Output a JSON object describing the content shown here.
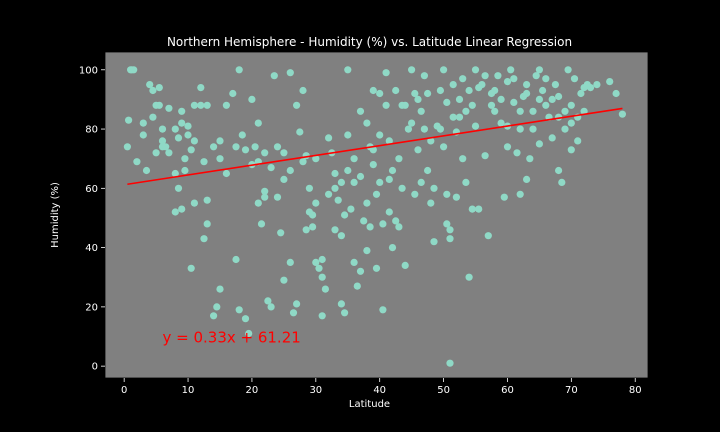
{
  "chart_data": {
    "type": "scatter",
    "title": "Northern Hemisphere - Humidity (%) vs. Latitude Linear Regression",
    "xlabel": "Latitude",
    "ylabel": "Humidity (%)",
    "xlim": [
      -3,
      82
    ],
    "ylim": [
      -4,
      106
    ],
    "xticks": [
      0,
      10,
      20,
      30,
      40,
      50,
      60,
      70,
      80
    ],
    "yticks": [
      0,
      20,
      40,
      60,
      80,
      100
    ],
    "grid": false,
    "colors": {
      "figure_background": "#000000",
      "plot_background": "#808080",
      "points": "#8fd9c6",
      "regression_line": "#ff0000",
      "equation_text": "#ff0000",
      "text": "#ffffff"
    },
    "regression": {
      "slope": 0.33,
      "intercept": 61.21,
      "x_range": [
        0.5,
        78
      ]
    },
    "annotation": {
      "text": "y = 0.33x + 61.21",
      "x": 6,
      "y": 10
    },
    "points": [
      [
        1,
        100
      ],
      [
        1.5,
        100
      ],
      [
        3,
        78
      ],
      [
        4,
        95
      ],
      [
        5,
        88
      ],
      [
        5.5,
        94
      ],
      [
        6,
        74
      ],
      [
        7,
        87
      ],
      [
        4.5,
        84
      ],
      [
        2,
        69
      ],
      [
        3.5,
        66
      ],
      [
        0.5,
        74
      ],
      [
        0.7,
        83
      ],
      [
        5,
        72
      ],
      [
        6,
        76
      ],
      [
        7,
        72
      ],
      [
        8,
        80
      ],
      [
        8.5,
        77
      ],
      [
        9,
        82
      ],
      [
        9.5,
        70
      ],
      [
        10,
        78
      ],
      [
        10.5,
        73
      ],
      [
        11,
        76
      ],
      [
        8,
        65
      ],
      [
        8.5,
        60
      ],
      [
        8,
        52
      ],
      [
        9,
        53
      ],
      [
        9.5,
        66
      ],
      [
        10,
        81
      ],
      [
        10.5,
        33
      ],
      [
        11,
        55
      ],
      [
        12,
        88
      ],
      [
        12.5,
        69
      ],
      [
        13,
        56
      ],
      [
        13,
        48
      ],
      [
        12.5,
        43
      ],
      [
        14,
        17
      ],
      [
        14.5,
        20
      ],
      [
        15,
        26
      ],
      [
        15,
        76
      ],
      [
        16,
        88
      ],
      [
        17,
        92
      ],
      [
        17.5,
        36
      ],
      [
        18,
        19
      ],
      [
        18,
        100
      ],
      [
        19,
        16
      ],
      [
        19.5,
        11
      ],
      [
        20,
        68
      ],
      [
        20.5,
        74
      ],
      [
        21,
        82
      ],
      [
        21,
        55
      ],
      [
        21.5,
        48
      ],
      [
        22,
        57
      ],
      [
        22,
        72
      ],
      [
        22.5,
        22
      ],
      [
        23,
        20
      ],
      [
        23.5,
        98
      ],
      [
        24,
        74
      ],
      [
        24.5,
        45
      ],
      [
        25,
        29
      ],
      [
        25,
        63
      ],
      [
        26,
        99
      ],
      [
        26,
        35
      ],
      [
        26.5,
        18
      ],
      [
        27,
        21
      ],
      [
        27.5,
        79
      ],
      [
        28,
        93
      ],
      [
        28.5,
        71
      ],
      [
        29,
        60
      ],
      [
        29,
        52
      ],
      [
        29.5,
        47
      ],
      [
        30,
        55
      ],
      [
        30,
        35
      ],
      [
        30.5,
        33
      ],
      [
        31,
        30
      ],
      [
        31,
        17
      ],
      [
        31.5,
        26
      ],
      [
        32,
        77
      ],
      [
        32.5,
        72
      ],
      [
        33,
        65
      ],
      [
        33,
        60
      ],
      [
        33.5,
        56
      ],
      [
        34,
        44
      ],
      [
        34,
        21
      ],
      [
        34.5,
        18
      ],
      [
        35,
        100
      ],
      [
        35,
        66
      ],
      [
        35.5,
        53
      ],
      [
        36,
        62
      ],
      [
        36,
        35
      ],
      [
        36.5,
        27
      ],
      [
        37,
        86
      ],
      [
        37,
        64
      ],
      [
        37.5,
        49
      ],
      [
        38,
        82
      ],
      [
        38,
        55
      ],
      [
        38.5,
        47
      ],
      [
        39,
        93
      ],
      [
        39,
        73
      ],
      [
        39.5,
        58
      ],
      [
        39.5,
        33
      ],
      [
        40,
        78
      ],
      [
        40,
        62
      ],
      [
        40.5,
        48
      ],
      [
        40.5,
        19
      ],
      [
        41,
        99
      ],
      [
        41,
        88
      ],
      [
        41.5,
        76
      ],
      [
        41.5,
        52
      ],
      [
        42,
        40
      ],
      [
        42,
        66
      ],
      [
        42.5,
        93
      ],
      [
        43,
        47
      ],
      [
        43,
        70
      ],
      [
        43.5,
        60
      ],
      [
        44,
        88
      ],
      [
        44,
        34
      ],
      [
        45,
        82
      ],
      [
        45,
        100
      ],
      [
        45.5,
        58
      ],
      [
        46,
        73
      ],
      [
        46,
        90
      ],
      [
        46.5,
        62
      ],
      [
        47,
        98
      ],
      [
        47,
        80
      ],
      [
        47.5,
        66
      ],
      [
        48,
        55
      ],
      [
        48,
        76
      ],
      [
        48.5,
        42
      ],
      [
        49,
        81
      ],
      [
        49.5,
        93
      ],
      [
        50,
        74
      ],
      [
        50,
        100
      ],
      [
        50.5,
        58
      ],
      [
        50.5,
        48
      ],
      [
        51,
        46
      ],
      [
        51,
        43
      ],
      [
        51,
        1
      ],
      [
        51.5,
        95
      ],
      [
        52,
        57
      ],
      [
        52.5,
        84
      ],
      [
        53,
        70
      ],
      [
        53.5,
        62
      ],
      [
        54,
        30
      ],
      [
        54,
        93
      ],
      [
        54.5,
        53
      ],
      [
        55,
        81
      ],
      [
        55,
        100
      ],
      [
        55.5,
        53
      ],
      [
        56,
        95
      ],
      [
        56.5,
        71
      ],
      [
        57,
        44
      ],
      [
        57.5,
        88
      ],
      [
        58,
        93
      ],
      [
        58.5,
        98
      ],
      [
        59,
        82
      ],
      [
        59.5,
        57
      ],
      [
        60,
        96
      ],
      [
        60,
        74
      ],
      [
        60.5,
        100
      ],
      [
        61,
        89
      ],
      [
        61.5,
        72
      ],
      [
        62,
        80
      ],
      [
        62,
        58
      ],
      [
        62.5,
        91
      ],
      [
        63,
        95
      ],
      [
        63,
        63
      ],
      [
        63.5,
        70
      ],
      [
        64,
        86
      ],
      [
        64.5,
        98
      ],
      [
        65,
        100
      ],
      [
        65,
        75
      ],
      [
        65.5,
        93
      ],
      [
        66,
        97
      ],
      [
        66.5,
        84
      ],
      [
        67,
        77
      ],
      [
        67.5,
        95
      ],
      [
        68,
        91
      ],
      [
        68,
        66
      ],
      [
        68.5,
        62
      ],
      [
        69,
        86
      ],
      [
        69.5,
        100
      ],
      [
        70,
        82
      ],
      [
        70,
        73
      ],
      [
        70.5,
        97
      ],
      [
        71,
        76
      ],
      [
        71.5,
        92
      ],
      [
        72,
        94
      ],
      [
        72.5,
        95
      ],
      [
        73,
        94
      ],
      [
        77,
        92
      ],
      [
        78,
        85
      ],
      [
        1.2,
        100
      ],
      [
        3,
        82
      ],
      [
        4.5,
        93
      ],
      [
        5.5,
        88
      ],
      [
        6,
        80
      ],
      [
        6.5,
        74
      ],
      [
        9,
        86
      ],
      [
        11,
        88
      ],
      [
        12,
        94
      ],
      [
        13,
        88
      ],
      [
        14,
        74
      ],
      [
        15,
        70
      ],
      [
        16,
        65
      ],
      [
        17.5,
        74
      ],
      [
        18.5,
        78
      ],
      [
        19,
        73
      ],
      [
        20,
        90
      ],
      [
        21,
        69
      ],
      [
        22,
        59
      ],
      [
        23,
        67
      ],
      [
        24,
        57
      ],
      [
        25,
        72
      ],
      [
        26,
        66
      ],
      [
        27,
        88
      ],
      [
        28,
        69
      ],
      [
        28.5,
        46
      ],
      [
        29.5,
        51
      ],
      [
        30,
        70
      ],
      [
        31,
        36
      ],
      [
        32,
        58
      ],
      [
        33,
        46
      ],
      [
        34,
        62
      ],
      [
        34.5,
        51
      ],
      [
        35,
        78
      ],
      [
        36,
        70
      ],
      [
        37,
        32
      ],
      [
        38,
        39
      ],
      [
        38.5,
        74
      ],
      [
        39,
        68
      ],
      [
        40,
        92
      ],
      [
        41.5,
        63
      ],
      [
        42.5,
        49
      ],
      [
        43.5,
        88
      ],
      [
        44.5,
        80
      ],
      [
        45.5,
        92
      ],
      [
        46.5,
        86
      ],
      [
        47.5,
        92
      ],
      [
        48.5,
        60
      ],
      [
        49.5,
        80
      ],
      [
        50.5,
        89
      ],
      [
        51.5,
        84
      ],
      [
        52,
        79
      ],
      [
        52.5,
        90
      ],
      [
        53,
        97
      ],
      [
        53.5,
        86
      ],
      [
        54.5,
        88
      ],
      [
        55.5,
        94
      ],
      [
        56.5,
        98
      ],
      [
        57.5,
        92
      ],
      [
        58,
        86
      ],
      [
        59,
        90
      ],
      [
        60,
        81
      ],
      [
        61,
        97
      ],
      [
        62,
        86
      ],
      [
        63,
        92
      ],
      [
        64,
        80
      ],
      [
        65,
        90
      ],
      [
        66,
        88
      ],
      [
        67,
        90
      ],
      [
        68,
        84
      ],
      [
        69,
        80
      ],
      [
        70,
        88
      ],
      [
        71,
        84
      ],
      [
        72,
        86
      ],
      [
        74,
        95
      ],
      [
        76,
        96
      ]
    ]
  }
}
